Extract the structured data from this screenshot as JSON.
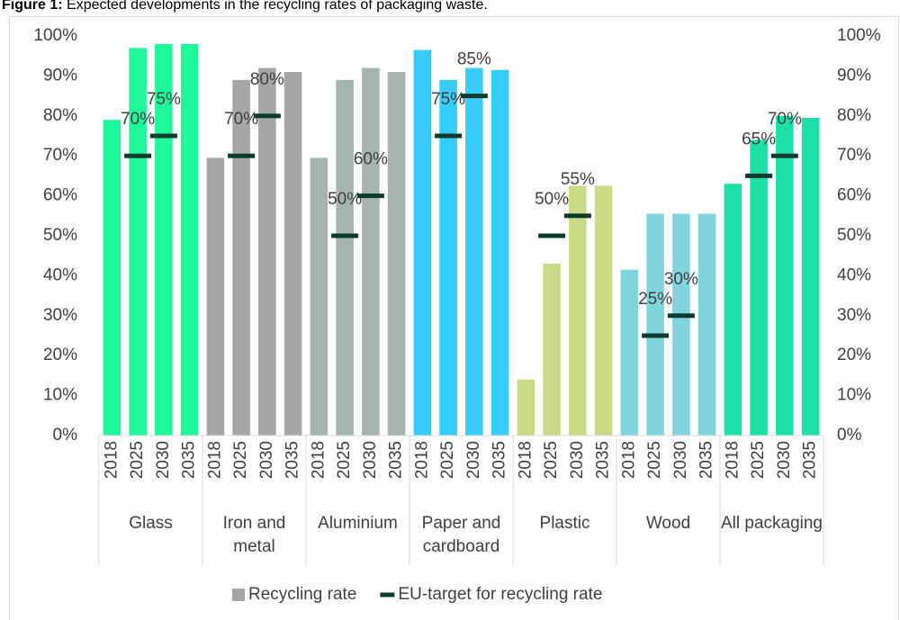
{
  "chart_data": {
    "type": "bar",
    "title_label": "Figure 1:",
    "title": "Expected developments in the recycling rates of packaging waste.",
    "categories": [
      "2018",
      "2025",
      "2030",
      "2035",
      "2018",
      "2025",
      "2030",
      "2035",
      "2018",
      "2025",
      "2030",
      "2035",
      "2018",
      "2025",
      "2030",
      "2035",
      "2018",
      "2025",
      "2030",
      "2035",
      "2018",
      "2025",
      "2030",
      "2035",
      "2018",
      "2025",
      "2030",
      "2035"
    ],
    "groups": [
      "Glass",
      "Iron and metal",
      "Aluminium",
      "Paper and cardboard",
      "Plastic",
      "Wood",
      "All packaging"
    ],
    "group_colors": [
      "#20f89c",
      "#a6a6a6",
      "#a6b4ae",
      "#36cdfc",
      "#c9da86",
      "#80d4dc",
      "#1de0a7"
    ],
    "series": [
      {
        "name": "Recycling rate",
        "color": "#a6a6a6",
        "values": [
          79,
          97,
          98,
          98,
          69.5,
          89,
          92,
          91,
          69.5,
          89,
          92,
          91,
          96.5,
          89,
          92,
          91.5,
          14,
          43,
          62.5,
          62.5,
          41.5,
          55.5,
          55.5,
          55.5,
          63,
          74,
          80,
          79.5
        ]
      },
      {
        "name": "EU-target for recycling rate",
        "color": "#0d3b2e",
        "marker": "dash",
        "values": [
          null,
          70,
          75,
          null,
          null,
          70,
          80,
          null,
          null,
          50,
          60,
          null,
          null,
          75,
          85,
          null,
          null,
          50,
          55,
          null,
          null,
          25,
          30,
          null,
          null,
          65,
          70,
          null
        ],
        "value_labels": [
          null,
          "70%",
          "75%",
          null,
          null,
          "70%",
          "80%",
          null,
          null,
          "50%",
          "60%",
          null,
          null,
          "75%",
          "85%",
          null,
          null,
          "50%",
          "55%",
          null,
          null,
          "25%",
          "30%",
          null,
          null,
          "65%",
          "70%",
          null
        ]
      }
    ],
    "ylim": [
      0,
      100
    ],
    "yticks": [
      {
        "value": 0,
        "label": "0%"
      },
      {
        "value": 10,
        "label": "10%"
      },
      {
        "value": 20,
        "label": "20%"
      },
      {
        "value": 30,
        "label": "30%"
      },
      {
        "value": 40,
        "label": "40%"
      },
      {
        "value": 50,
        "label": "50%"
      },
      {
        "value": 60,
        "label": "60%"
      },
      {
        "value": 70,
        "label": "70%"
      },
      {
        "value": 80,
        "label": "80%"
      },
      {
        "value": 90,
        "label": "90%"
      },
      {
        "value": 100,
        "label": "100%"
      }
    ],
    "y2lim": [
      0,
      100
    ],
    "y2ticks": [
      {
        "value": 0,
        "label": "0%"
      },
      {
        "value": 10,
        "label": "10%"
      },
      {
        "value": 20,
        "label": "20%"
      },
      {
        "value": 30,
        "label": "30%"
      },
      {
        "value": 40,
        "label": "40%"
      },
      {
        "value": 50,
        "label": "50%"
      },
      {
        "value": 60,
        "label": "60%"
      },
      {
        "value": 70,
        "label": "70%"
      },
      {
        "value": 80,
        "label": "80%"
      },
      {
        "value": 90,
        "label": "90%"
      },
      {
        "value": 100,
        "label": "100%"
      }
    ],
    "grid": false,
    "legend": "bottom"
  }
}
